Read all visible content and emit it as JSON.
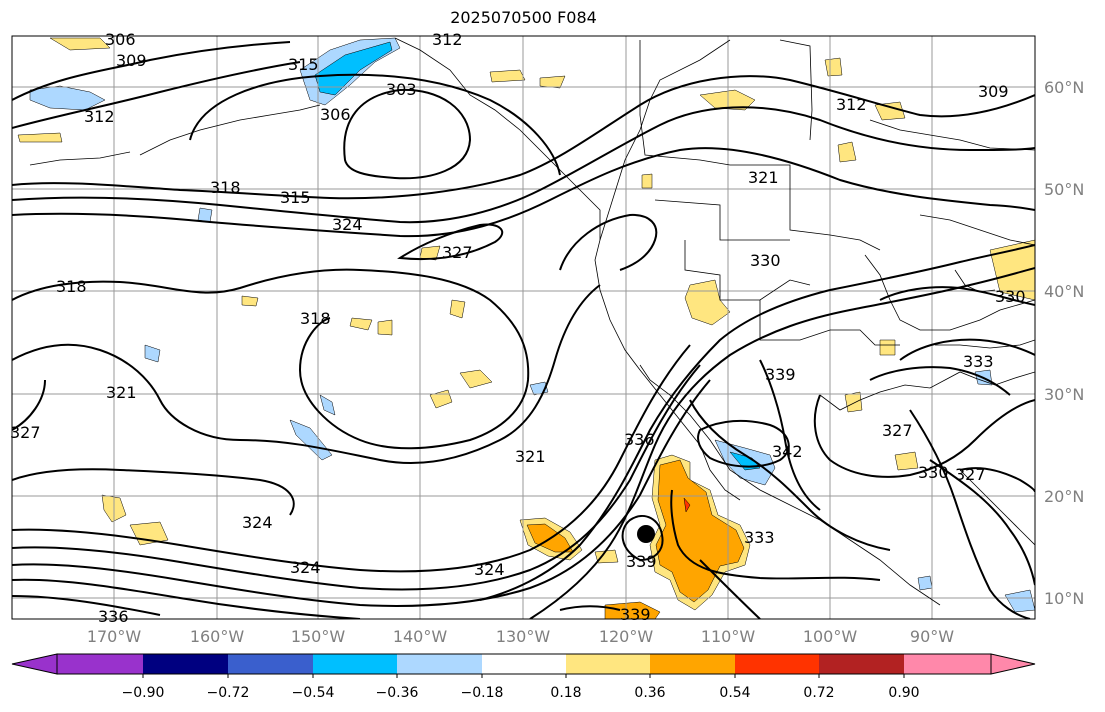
{
  "title": "2025070500 F084",
  "lon_labels": [
    "170°W",
    "160°W",
    "150°W",
    "140°W",
    "130°W",
    "120°W",
    "110°W",
    "100°W",
    "90°W"
  ],
  "lat_labels": [
    "60°N",
    "50°N",
    "40°N",
    "30°N",
    "20°N",
    "10°N"
  ],
  "colorbar": {
    "tick_labels": [
      "−0.90",
      "−0.72",
      "−0.54",
      "−0.36",
      "−0.18",
      "0.18",
      "0.36",
      "0.54",
      "0.72",
      "0.90"
    ],
    "colors": [
      "#9932cc",
      "#000080",
      "#3a5fcd",
      "#00bfff",
      "#add8ff",
      "#ffffff",
      "#ffe680",
      "#ffa500",
      "#ff3300",
      "#b22222",
      "#ff88aa"
    ]
  },
  "contour_labels": [
    "306",
    "309",
    "312",
    "315",
    "306",
    "303",
    "312",
    "318",
    "315",
    "324",
    "327",
    "321",
    "330",
    "312",
    "309",
    "321",
    "318",
    "327",
    "324",
    "321",
    "318",
    "336",
    "324",
    "339",
    "333",
    "342",
    "339",
    "327",
    "330",
    "327",
    "330",
    "333",
    "324",
    "336",
    "339"
  ],
  "colors": {
    "contour": "#000000",
    "grid": "#999999",
    "yellow": "#ffe680",
    "orange": "#ffa500",
    "lightblue": "#add8ff",
    "blue": "#00bfff"
  }
}
